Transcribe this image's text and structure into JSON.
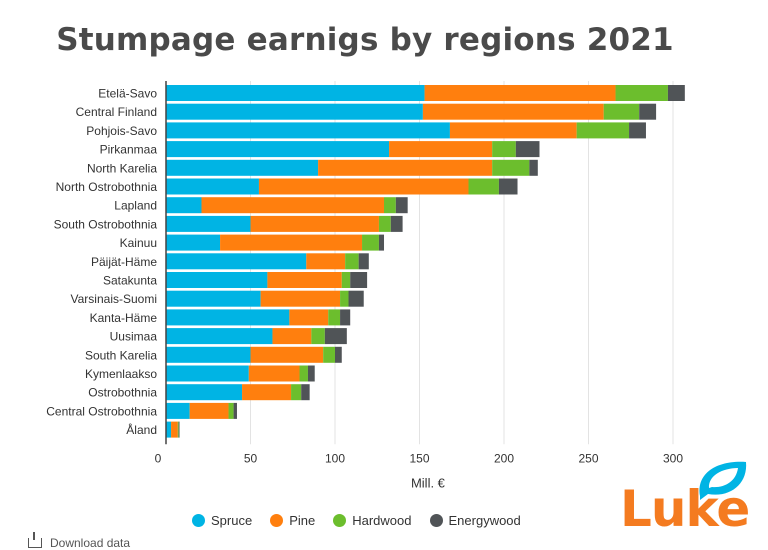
{
  "chart_data": {
    "type": "bar",
    "orientation": "horizontal",
    "stacked": true,
    "title": "Stumpage earnigs by regions 2021",
    "xlabel": "Mill. €",
    "ylabel": "",
    "xlim": [
      0,
      300
    ],
    "xticks": [
      0,
      50,
      100,
      150,
      200,
      250,
      300
    ],
    "grid": true,
    "legend_position": "bottom",
    "categories": [
      "Etelä-Savo",
      "Central Finland",
      "Pohjois-Savo",
      "Pirkanmaa",
      "North Karelia",
      "North Ostrobothnia",
      "Lapland",
      "South Ostrobothnia",
      "Kainuu",
      "Päijät-Häme",
      "Satakunta",
      "Varsinais-Suomi",
      "Kanta-Häme",
      "Uusimaa",
      "South Karelia",
      "Kymenlaakso",
      "Ostrobothnia",
      "Central Ostrobothnia",
      "Åland"
    ],
    "series": [
      {
        "name": "Spruce",
        "color": "#00b4e4",
        "values": [
          153,
          152,
          168,
          132,
          90,
          55,
          21,
          50,
          32,
          83,
          60,
          56,
          73,
          63,
          50,
          49,
          45,
          14,
          3
        ]
      },
      {
        "name": "Pine",
        "color": "#ff7f0e",
        "values": [
          113,
          107,
          75,
          61,
          103,
          124,
          108,
          76,
          84,
          23,
          44,
          47,
          23,
          23,
          43,
          30,
          29,
          23,
          4
        ]
      },
      {
        "name": "Hardwood",
        "color": "#6cbe2d",
        "values": [
          31,
          21,
          31,
          14,
          22,
          18,
          7,
          7,
          10,
          8,
          5,
          5,
          7,
          8,
          7,
          5,
          6,
          3,
          0.5
        ]
      },
      {
        "name": "Energywood",
        "color": "#505457",
        "values": [
          10,
          10,
          10,
          14,
          5,
          11,
          7,
          7,
          3,
          6,
          10,
          9,
          6,
          13,
          4,
          4,
          5,
          2,
          0.5
        ]
      }
    ]
  },
  "footer": {
    "download_label": "Download data"
  },
  "logo": {
    "text": "Luke",
    "color": "#f47b20",
    "accent": "#00b4e4"
  }
}
